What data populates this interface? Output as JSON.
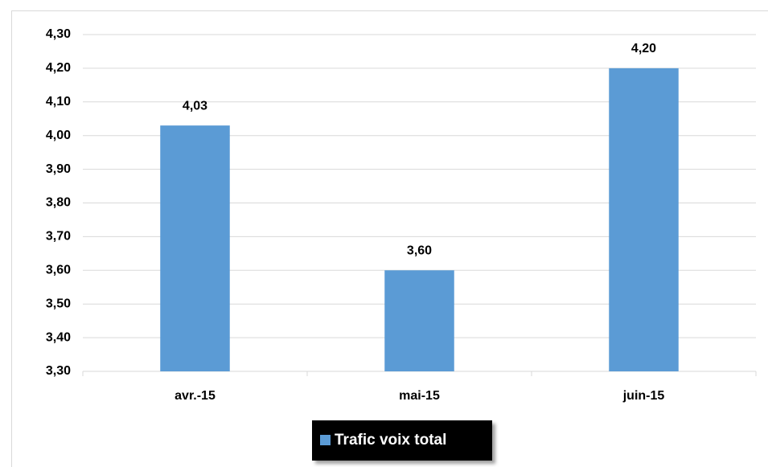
{
  "chart_data": {
    "type": "bar",
    "categories": [
      "avr.-15",
      "mai-15",
      "juin-15"
    ],
    "series": [
      {
        "name": "Trafic voix total",
        "color": "#5b9bd5",
        "values": [
          4.03,
          3.6,
          4.2
        ],
        "value_labels": [
          "4,03",
          "3,60",
          "4,20"
        ]
      }
    ],
    "ylim": [
      3.3,
      4.3
    ],
    "yticks": [
      {
        "value": 3.3,
        "label": "3,30"
      },
      {
        "value": 3.4,
        "label": "3,40"
      },
      {
        "value": 3.5,
        "label": "3,50"
      },
      {
        "value": 3.6,
        "label": "3,60"
      },
      {
        "value": 3.7,
        "label": "3,70"
      },
      {
        "value": 3.8,
        "label": "3,80"
      },
      {
        "value": 3.9,
        "label": "3,90"
      },
      {
        "value": 4.0,
        "label": "4,00"
      },
      {
        "value": 4.1,
        "label": "4,10"
      },
      {
        "value": 4.2,
        "label": "4,20"
      },
      {
        "value": 4.3,
        "label": "4,30"
      }
    ],
    "grid": true,
    "legend": "bottom"
  }
}
